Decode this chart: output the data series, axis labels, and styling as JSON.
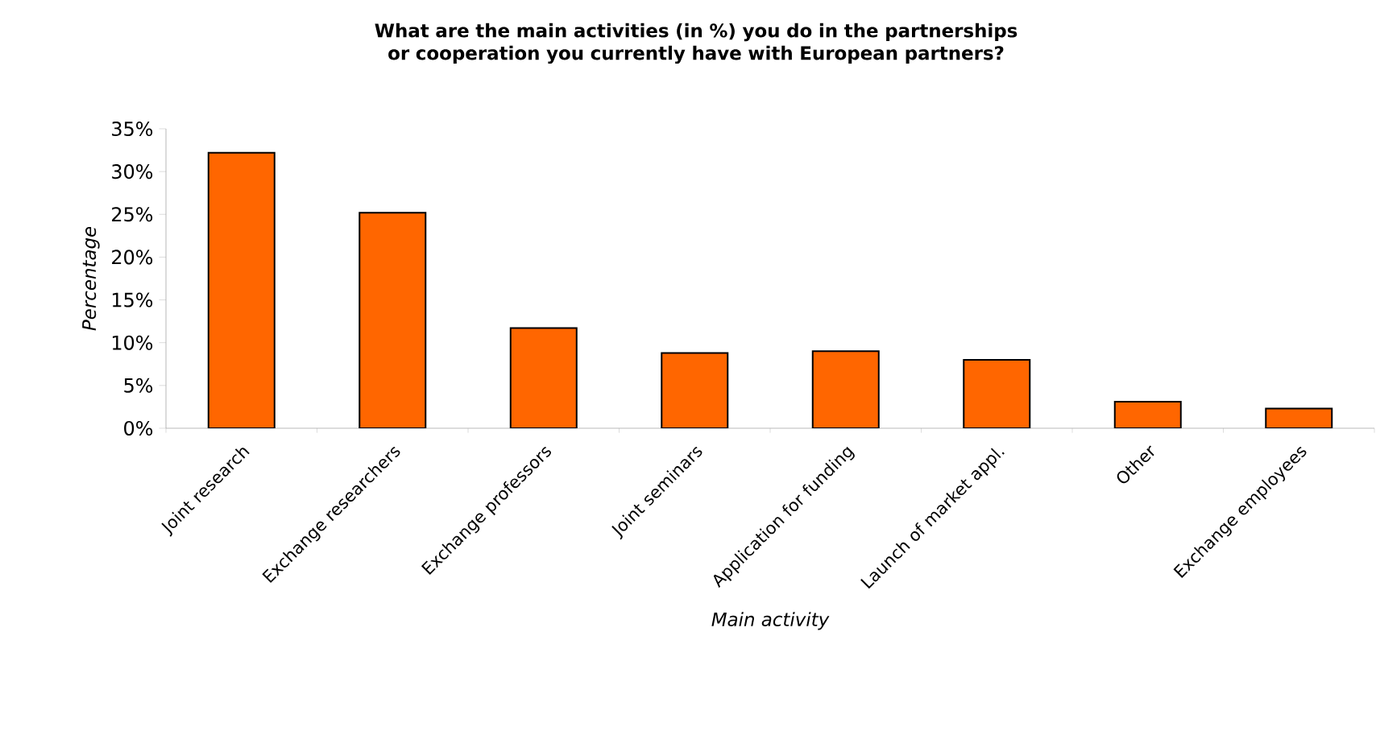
{
  "chart_data": {
    "type": "bar",
    "title": "What are the main activities (in %) you do in the partnerships or cooperation you currently have with European partners?",
    "xlabel": "Main activity",
    "ylabel": "Percentage",
    "categories": [
      "Joint research",
      "Exchange researchers",
      "Exchange professors",
      "Joint seminars",
      "Application for funding",
      "Launch of market appl.",
      "Other",
      "Exchange employees"
    ],
    "values": [
      32.2,
      25.2,
      11.7,
      8.8,
      9.0,
      8.0,
      3.1,
      2.3
    ],
    "color": "#ff6600",
    "ylim": [
      0,
      35
    ],
    "yticks": [
      {
        "value": 0,
        "label": "0%"
      },
      {
        "value": 5,
        "label": "5%"
      },
      {
        "value": 10,
        "label": "10%"
      },
      {
        "value": 15,
        "label": "15%"
      },
      {
        "value": 20,
        "label": "20%"
      },
      {
        "value": 25,
        "label": "25%"
      },
      {
        "value": 30,
        "label": "30%"
      },
      {
        "value": 35,
        "label": "35%"
      }
    ],
    "grid": false
  }
}
